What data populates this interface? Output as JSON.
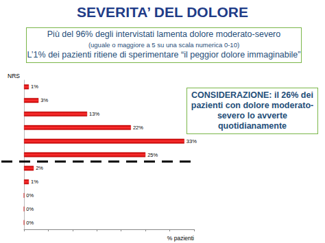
{
  "chart_data": {
    "type": "bar",
    "title": "SEVERITA’ DEL DOLORE",
    "subtitle": [
      "Più del 96% degli intervistati lamenta dolore moderato-severo",
      "(uguale o maggiore a 5 su una scala numerica 0-10)",
      "L’1% dei pazienti ritiene di sperimentare “il peggior dolore immaginabile”"
    ],
    "annotations": [
      "CONSIDERAZIONE: il 26% dei pazienti con dolore moderato-severo lo avverte quotidianamente"
    ],
    "ylabel": "NRS",
    "xlabel": "% pazienti",
    "orientation": "horizontal",
    "categories": [
      null,
      null,
      null,
      null,
      null,
      null,
      null,
      null,
      null,
      null,
      null
    ],
    "values": [
      0,
      0,
      0,
      1,
      2,
      25,
      33,
      22,
      13,
      3,
      1
    ],
    "value_labels": [
      "0%",
      "0%",
      "0%",
      "1%",
      "2%",
      "25%",
      "33%",
      "22%",
      "13%",
      "3%",
      "1%"
    ],
    "data_labels": true,
    "color": "#c00000",
    "xlim": [
      0,
      35
    ],
    "xticks": [
      0,
      5,
      10,
      15,
      20,
      25,
      30,
      35
    ],
    "tick_labels": false,
    "grid": false
  }
}
